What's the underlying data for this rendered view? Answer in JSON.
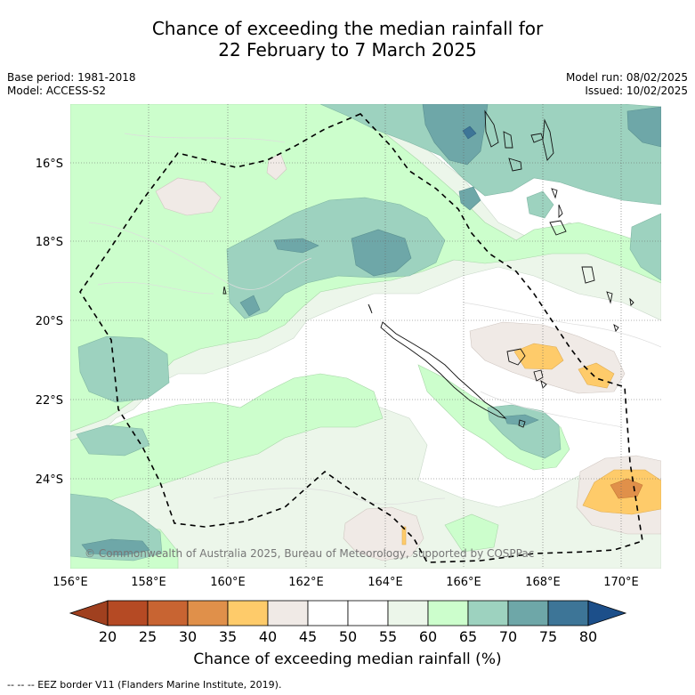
{
  "header": {
    "title_line1": "Chance of exceeding the median rainfall for",
    "title_line2": "22 February to 7 March 2025",
    "base_period": "Base period: 1981-2018",
    "model": "Model: ACCESS-S2",
    "model_run": "Model run: 08/02/2025",
    "issued": "Issued: 10/02/2025"
  },
  "map": {
    "lat_labels": [
      "16°S",
      "18°S",
      "20°S",
      "22°S",
      "24°S"
    ],
    "lon_labels": [
      "156°E",
      "158°E",
      "160°E",
      "162°E",
      "164°E",
      "166°E",
      "168°E",
      "170°E"
    ],
    "copyright": "© Commonwealth of Australia 2025, Bureau of Meteorology, supported by COSPPac"
  },
  "colorbar": {
    "ticks": [
      "20",
      "25",
      "30",
      "35",
      "40",
      "45",
      "50",
      "55",
      "60",
      "65",
      "70",
      "75",
      "80"
    ],
    "colors": [
      "#a0401f",
      "#b54a24",
      "#c86432",
      "#e0904a",
      "#fecb6a",
      "#f0eae6",
      "#ffffff",
      "#ffffff",
      "#ecf6ea",
      "#ccfecc",
      "#9dd2bf",
      "#6ea7a8",
      "#3d7597",
      "#1c4f8a"
    ],
    "title": "Chance of exceeding median rainfall (%)"
  },
  "footer": {
    "legend": "--  --  -- EEZ border V11 (Flanders Marine Institute, 2019)."
  }
}
